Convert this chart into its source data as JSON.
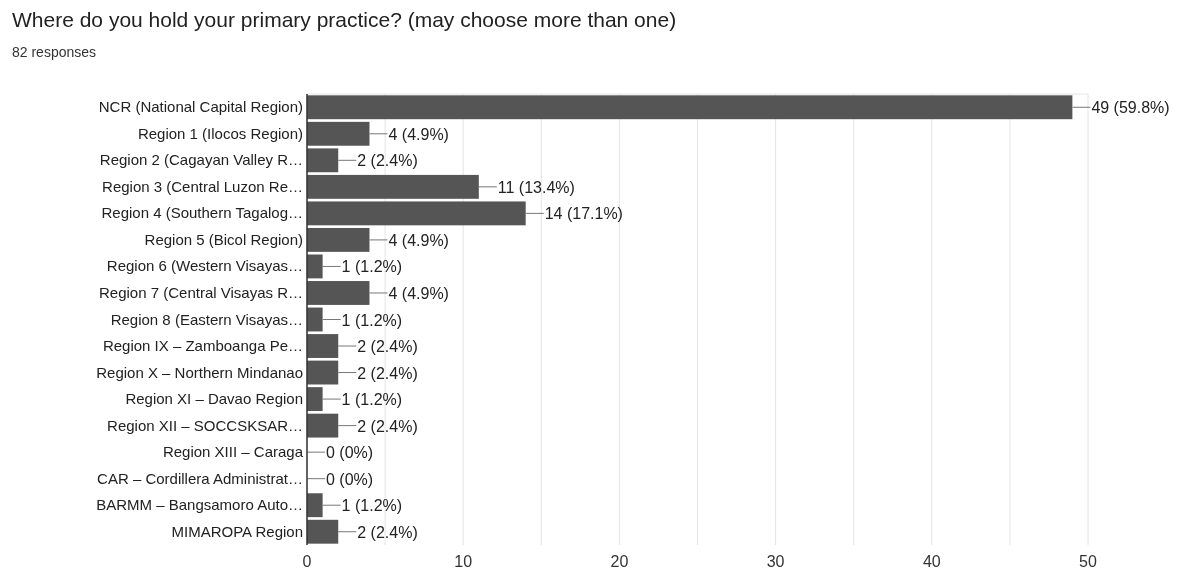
{
  "chart_data": {
    "type": "bar",
    "orientation": "horizontal",
    "title": "Where do you hold your primary practice? (may choose more than one)",
    "subtitle": "82 responses",
    "categories": [
      "NCR (National Capital Region)",
      "Region 1 (Ilocos Region)",
      "Region 2 (Cagayan Valley R…",
      "Region 3 (Central Luzon Re…",
      "Region 4 (Southern Tagalog…",
      "Region 5 (Bicol Region)",
      "Region 6 (Western Visayas…",
      "Region 7 (Central Visayas R…",
      "Region 8 (Eastern Visayas…",
      "Region IX – Zamboanga Pe…",
      "Region X – Northern Mindanao",
      "Region XI – Davao Region",
      "Region XII – SOCCSKSAR…",
      "Region XIII – Caraga",
      "CAR – Cordillera Administrat…",
      "BARMM – Bangsamoro Auto…",
      "MIMAROPA Region"
    ],
    "values": [
      49,
      4,
      2,
      11,
      14,
      4,
      1,
      4,
      1,
      2,
      2,
      1,
      2,
      0,
      0,
      1,
      2
    ],
    "value_labels": [
      "49 (59.8%)",
      "4 (4.9%)",
      "2 (2.4%)",
      "11 (13.4%)",
      "14 (17.1%)",
      "4 (4.9%)",
      "1 (1.2%)",
      "4 (4.9%)",
      "1 (1.2%)",
      "2 (2.4%)",
      "2 (2.4%)",
      "1 (1.2%)",
      "2 (2.4%)",
      "0 (0%)",
      "0 (0%)",
      "1 (1.2%)",
      "2 (2.4%)"
    ],
    "color": "#555555",
    "xlim": [
      0,
      50
    ],
    "xticks": [
      0,
      {
        "value": 5,
        "label": null
      },
      10,
      {
        "value": 15,
        "label": null
      },
      20,
      {
        "value": 25,
        "label": null
      },
      30,
      {
        "value": 35,
        "label": null
      },
      40,
      {
        "value": 45,
        "label": null
      },
      50
    ],
    "grid": "x"
  }
}
